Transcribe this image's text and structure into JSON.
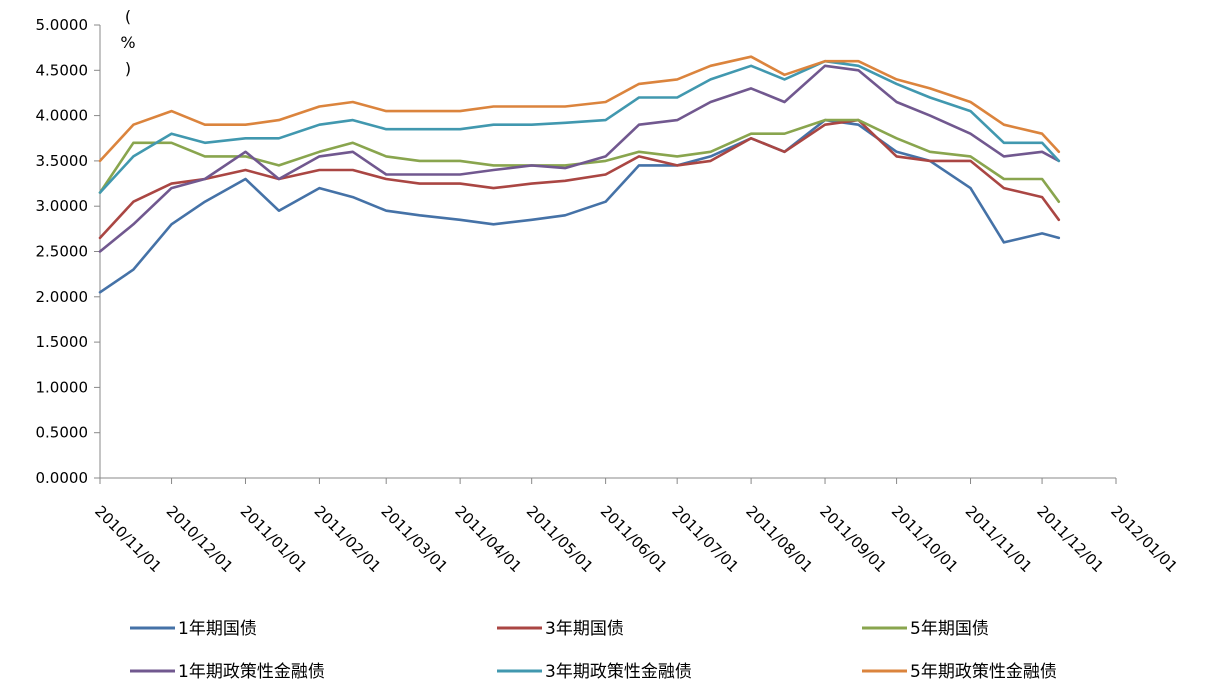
{
  "chart_data": {
    "type": "line",
    "ylabel": "(%)",
    "ylim": [
      0,
      5
    ],
    "yticks": [
      "0.0000",
      "0.5000",
      "1.0000",
      "1.5000",
      "2.0000",
      "2.5000",
      "3.0000",
      "3.5000",
      "4.0000",
      "4.5000",
      "5.0000"
    ],
    "xlim": [
      "2010/11/01",
      "2012/01/01"
    ],
    "xticks": [
      "2010/11/01",
      "2010/12/01",
      "2011/01/01",
      "2011/02/01",
      "2011/03/01",
      "2011/04/01",
      "2011/05/01",
      "2011/06/01",
      "2011/07/01",
      "2011/08/01",
      "2011/09/01",
      "2011/10/01",
      "2011/11/01",
      "2011/12/01",
      "2012/01/01"
    ],
    "legend_position": "bottom",
    "x": [
      "2010/11/01",
      "2010/11/15",
      "2010/12/01",
      "2010/12/15",
      "2011/01/01",
      "2011/01/15",
      "2011/02/01",
      "2011/02/15",
      "2011/03/01",
      "2011/03/15",
      "2011/04/01",
      "2011/04/15",
      "2011/05/01",
      "2011/05/15",
      "2011/06/01",
      "2011/06/15",
      "2011/07/01",
      "2011/07/15",
      "2011/08/01",
      "2011/08/15",
      "2011/09/01",
      "2011/09/15",
      "2011/10/01",
      "2011/10/15",
      "2011/11/01",
      "2011/11/15",
      "2011/12/01",
      "2011/12/08"
    ],
    "series": [
      {
        "name": "1年期国债",
        "color": "#4572A7",
        "values": [
          2.05,
          2.3,
          2.8,
          3.05,
          3.3,
          2.95,
          3.2,
          3.1,
          2.95,
          2.9,
          2.85,
          2.8,
          2.85,
          2.9,
          3.05,
          3.45,
          3.45,
          3.55,
          3.75,
          3.6,
          3.95,
          3.9,
          3.6,
          3.5,
          3.2,
          2.6,
          2.7,
          2.65
        ]
      },
      {
        "name": "3年期国债",
        "color": "#AA4643",
        "values": [
          2.65,
          3.05,
          3.25,
          3.3,
          3.4,
          3.3,
          3.4,
          3.4,
          3.3,
          3.25,
          3.25,
          3.2,
          3.25,
          3.28,
          3.35,
          3.55,
          3.45,
          3.5,
          3.75,
          3.6,
          3.9,
          3.95,
          3.55,
          3.5,
          3.5,
          3.2,
          3.1,
          2.85
        ]
      },
      {
        "name": "5年期国债",
        "color": "#89A54E",
        "values": [
          3.15,
          3.7,
          3.7,
          3.55,
          3.55,
          3.45,
          3.6,
          3.7,
          3.55,
          3.5,
          3.5,
          3.45,
          3.45,
          3.45,
          3.5,
          3.6,
          3.55,
          3.6,
          3.8,
          3.8,
          3.95,
          3.95,
          3.75,
          3.6,
          3.55,
          3.3,
          3.3,
          3.05
        ]
      },
      {
        "name": "1年期政策性金融债",
        "color": "#71588F",
        "values": [
          2.5,
          2.8,
          3.2,
          3.3,
          3.6,
          3.3,
          3.55,
          3.6,
          3.35,
          3.35,
          3.35,
          3.4,
          3.45,
          3.42,
          3.55,
          3.9,
          3.95,
          4.15,
          4.3,
          4.15,
          4.55,
          4.5,
          4.15,
          4.0,
          3.8,
          3.55,
          3.6,
          3.5
        ]
      },
      {
        "name": "3年期政策性金融债",
        "color": "#4198AF",
        "values": [
          3.15,
          3.55,
          3.8,
          3.7,
          3.75,
          3.75,
          3.9,
          3.95,
          3.85,
          3.85,
          3.85,
          3.9,
          3.9,
          3.92,
          3.95,
          4.2,
          4.2,
          4.4,
          4.55,
          4.4,
          4.6,
          4.55,
          4.35,
          4.2,
          4.05,
          3.7,
          3.7,
          3.5
        ]
      },
      {
        "name": "5年期政策性金融债",
        "color": "#DB843D",
        "values": [
          3.5,
          3.9,
          4.05,
          3.9,
          3.9,
          3.95,
          4.1,
          4.15,
          4.05,
          4.05,
          4.05,
          4.1,
          4.1,
          4.1,
          4.15,
          4.35,
          4.4,
          4.55,
          4.65,
          4.45,
          4.6,
          4.6,
          4.4,
          4.3,
          4.15,
          3.9,
          3.8,
          3.6
        ]
      }
    ]
  }
}
